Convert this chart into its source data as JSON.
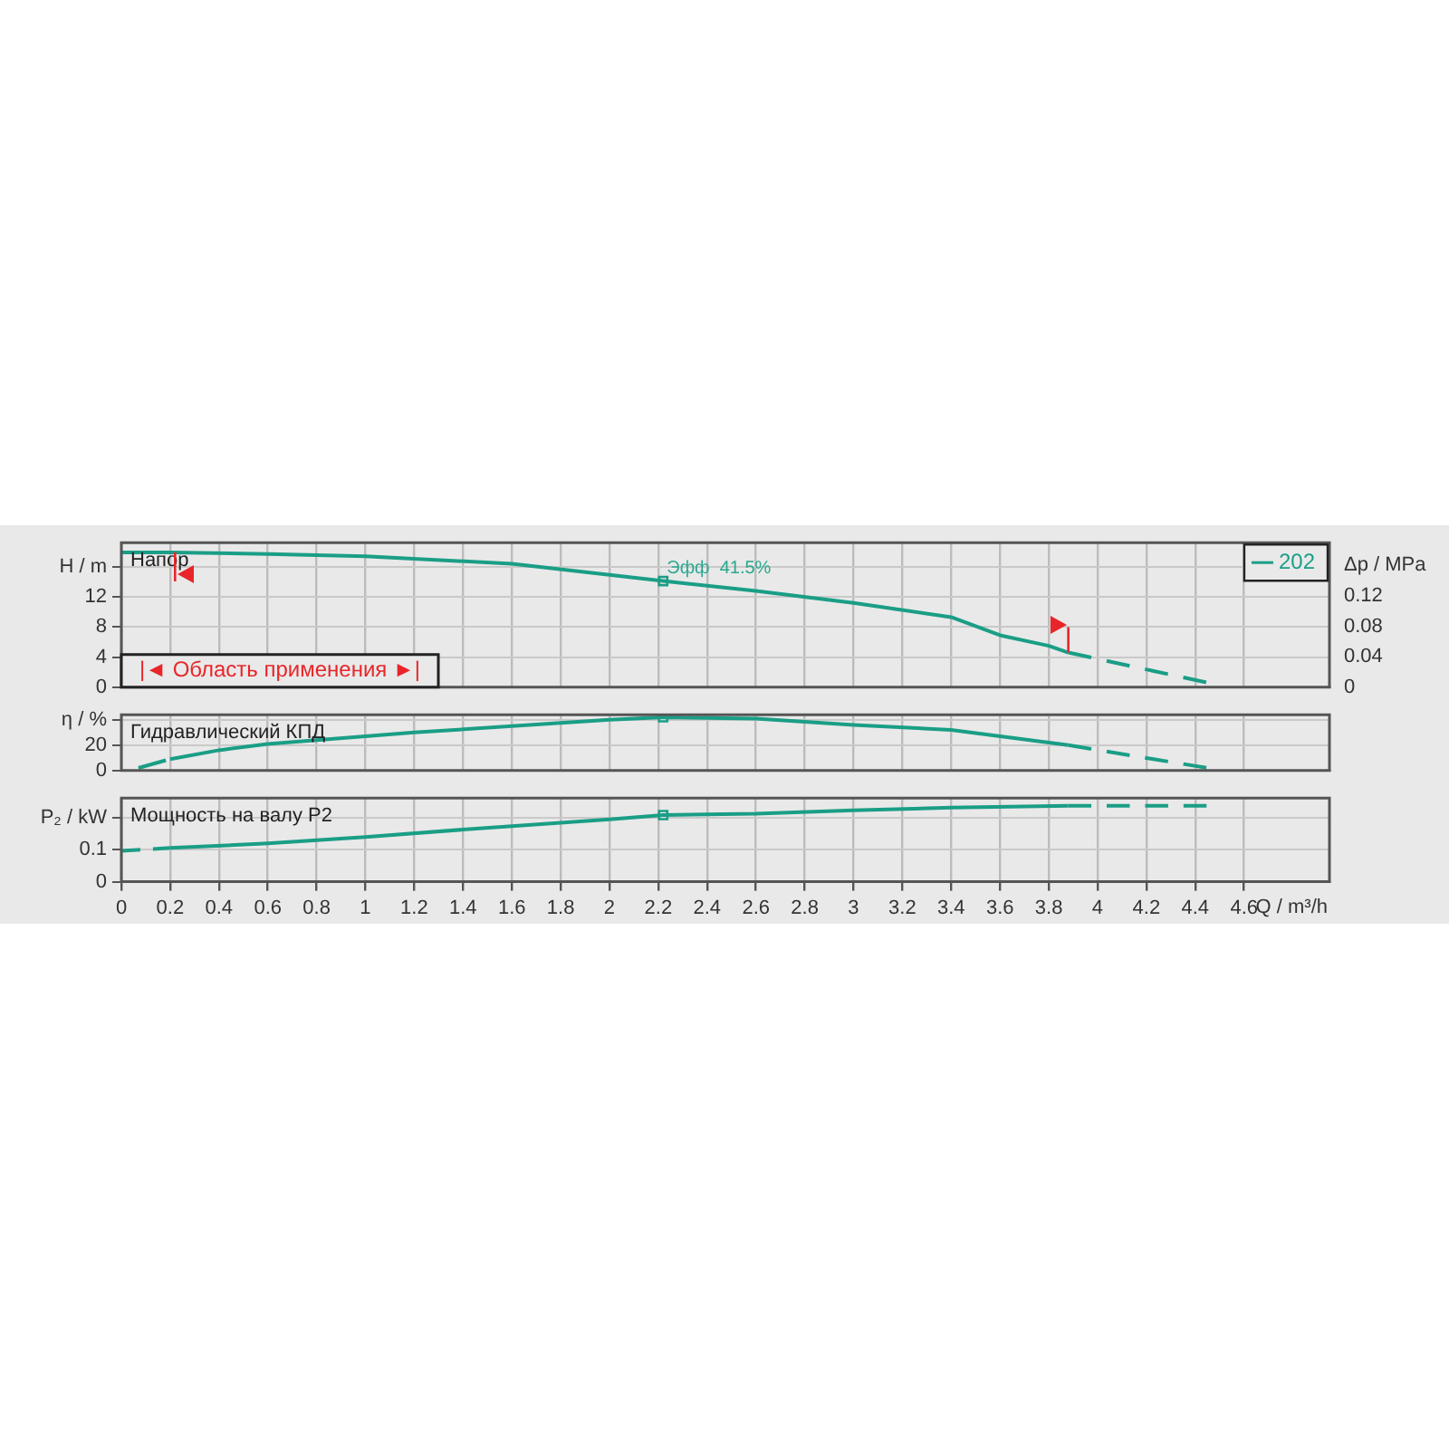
{
  "chart_data": [
    {
      "type": "line",
      "title": "Напор",
      "ylabel": "H / m",
      "y2label": "Δp / MPa",
      "xlim": [
        0,
        4.95
      ],
      "xticks": [
        0,
        0.2,
        0.4,
        0.6,
        0.8,
        1,
        1.2,
        1.4,
        1.6,
        1.8,
        2,
        2.2,
        2.4,
        2.6,
        2.8,
        3,
        3.2,
        3.4,
        3.6,
        3.8,
        4,
        4.2,
        4.4,
        4.6
      ],
      "ylim": [
        0,
        19.2
      ],
      "yticks": [
        0,
        4,
        8,
        12,
        {
          "value": 16,
          "label": null
        }
      ],
      "y2lim": [
        0,
        0.19
      ],
      "y2ticks": [
        0,
        0.04,
        0.08,
        0.12,
        {
          "value": 0.16,
          "label": null
        }
      ],
      "tick_labels": "y",
      "grid": true,
      "legend": "top right",
      "series": [
        {
          "name": "202",
          "color": "#1a9e86",
          "x": [
            0,
            0.2,
            0.6,
            1,
            1.6,
            2.22,
            2.6,
            3,
            3.4,
            3.6,
            3.8,
            3.88
          ],
          "values": [
            17.9,
            17.9,
            17.7,
            17.4,
            16.4,
            14.1,
            12.8,
            11.2,
            9.3,
            6.9,
            5.5,
            4.6
          ]
        },
        {
          "color": "#1a9e86",
          "line_style": "dashed",
          "x": [
            3.88,
            4.45
          ],
          "values": [
            4.6,
            0.6
          ]
        },
        {
          "type": "scatter",
          "marker": "square",
          "color": "#1a9e86",
          "x": [
            2.22
          ],
          "values": [
            14.1
          ]
        }
      ],
      "ref_lines": [
        {
          "axis": "x",
          "value": 0.22,
          "color": "#e8262a"
        },
        {
          "axis": "x",
          "value": 3.88,
          "color": "#e8262a"
        }
      ],
      "annotations": [
        {
          "text": "Эфф  41.5%",
          "x": 2.22,
          "y": 14.1
        },
        "|◄ Область применения ►|"
      ]
    },
    {
      "type": "line",
      "title": "Гидравлический КПД",
      "ylabel": "η / %",
      "xlim": [
        0,
        4.95
      ],
      "xticks": [
        0,
        0.2,
        0.4,
        0.6,
        0.8,
        1,
        1.2,
        1.4,
        1.6,
        1.8,
        2,
        2.2,
        2.4,
        2.6,
        2.8,
        3,
        3.2,
        3.4,
        3.6,
        3.8,
        4,
        4.2,
        4.4,
        4.6
      ],
      "ylim": [
        0,
        44
      ],
      "yticks": [
        0,
        20,
        {
          "value": 40,
          "label": null
        }
      ],
      "tick_labels": "y",
      "grid": true,
      "series": [
        {
          "color": "#1a9e86",
          "x": [
            0.2,
            0.4,
            0.6,
            0.8,
            1.2,
            1.6,
            2,
            2.22,
            2.6,
            3,
            3.4,
            3.88
          ],
          "values": [
            9,
            16,
            21,
            24,
            30,
            35,
            40,
            42,
            41,
            36,
            32,
            20
          ]
        },
        {
          "color": "#1a9e86",
          "line_style": "dashed",
          "x": [
            0.07,
            0.2
          ],
          "values": [
            2,
            9
          ]
        },
        {
          "color": "#1a9e86",
          "line_style": "dashed",
          "x": [
            3.88,
            4.45
          ],
          "values": [
            20,
            2
          ]
        },
        {
          "type": "scatter",
          "marker": "square",
          "color": "#1a9e86",
          "x": [
            2.22
          ],
          "values": [
            42
          ]
        }
      ]
    },
    {
      "type": "line",
      "title": "Мощность на валу P2",
      "ylabel": "P₂ / kW",
      "xlabel": "Q / m³/h",
      "xlim": [
        0,
        4.95
      ],
      "xticks": [
        0,
        0.2,
        0.4,
        0.6,
        0.8,
        1,
        1.2,
        1.4,
        1.6,
        1.8,
        2,
        2.2,
        2.4,
        2.6,
        2.8,
        3,
        3.2,
        3.4,
        3.6,
        3.8,
        4,
        4.2,
        4.4,
        4.6
      ],
      "ylim": [
        0,
        0.26
      ],
      "yticks": [
        0,
        0.1,
        {
          "value": 0.2,
          "label": null
        }
      ],
      "grid": true,
      "series": [
        {
          "color": "#1a9e86",
          "line_style": "dashed",
          "x": [
            0,
            0.2
          ],
          "values": [
            0.096,
            0.105
          ]
        },
        {
          "color": "#1a9e86",
          "x": [
            0.2,
            0.6,
            1,
            1.4,
            2,
            2.22,
            2.6,
            3,
            3.4,
            3.88
          ],
          "values": [
            0.105,
            0.119,
            0.139,
            0.162,
            0.194,
            0.207,
            0.211,
            0.222,
            0.23,
            0.236
          ]
        },
        {
          "color": "#1a9e86",
          "line_style": "dashed",
          "x": [
            3.88,
            4.45
          ],
          "values": [
            0.236,
            0.236
          ]
        },
        {
          "type": "scatter",
          "marker": "square",
          "color": "#1a9e86",
          "x": [
            2.22
          ],
          "values": [
            0.207
          ]
        }
      ]
    }
  ]
}
